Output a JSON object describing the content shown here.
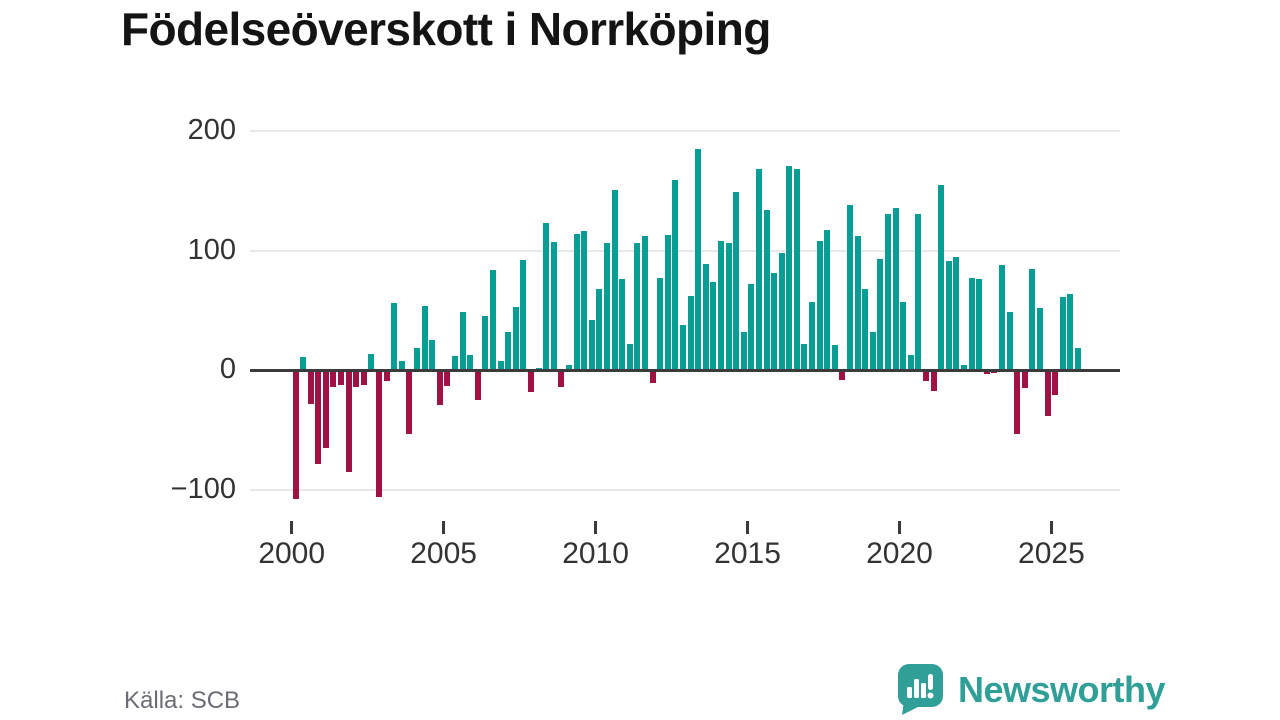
{
  "title": "Födelseöverskott i Norrköping",
  "source": "Källa: SCB",
  "branding": {
    "logo_text": "Newsworthy",
    "logo_icon": "bar-chart-speech-bubble",
    "logo_color": "#2f9f98"
  },
  "colors": {
    "positive_bar": "#089e96",
    "negative_bar": "#a01243",
    "axis_line": "#3b3b3b",
    "gridline": "#e8e8e8",
    "tick_label": "#333333"
  },
  "chart_data": {
    "type": "bar",
    "title": "Födelseöverskott i Norrköping",
    "xlabel": "",
    "ylabel": "",
    "frequency": "quarterly",
    "ylim": [
      -126,
      200
    ],
    "grid": "horizontal",
    "y_ticks": [
      {
        "label": "200",
        "value": 200
      },
      {
        "label": "100",
        "value": 100
      },
      {
        "label": "0",
        "value": 0
      },
      {
        "label": "−100",
        "value": -100
      }
    ],
    "x_ticks": [
      {
        "label": "2000",
        "quarter_index": 0
      },
      {
        "label": "2005",
        "quarter_index": 20
      },
      {
        "label": "2010",
        "quarter_index": 40
      },
      {
        "label": "2015",
        "quarter_index": 60
      },
      {
        "label": "2020",
        "quarter_index": 80
      },
      {
        "label": "2025",
        "quarter_index": 100
      }
    ],
    "series": [
      {
        "year": 2000,
        "q": [
          -108,
          11,
          -28,
          -78
        ]
      },
      {
        "year": 2001,
        "q": [
          -65,
          -14,
          -12,
          -85
        ]
      },
      {
        "year": 2002,
        "q": [
          -14,
          -12,
          14,
          -106
        ]
      },
      {
        "year": 2003,
        "q": [
          -9,
          56,
          8,
          -53
        ]
      },
      {
        "year": 2004,
        "q": [
          19,
          54,
          25,
          -29
        ]
      },
      {
        "year": 2005,
        "q": [
          -13,
          12,
          49,
          13
        ]
      },
      {
        "year": 2006,
        "q": [
          -25,
          45,
          84,
          8
        ]
      },
      {
        "year": 2007,
        "q": [
          32,
          53,
          92,
          -18
        ]
      },
      {
        "year": 2008,
        "q": [
          2,
          123,
          107,
          -14
        ]
      },
      {
        "year": 2009,
        "q": [
          4,
          114,
          116,
          42
        ]
      },
      {
        "year": 2010,
        "q": [
          68,
          106,
          151,
          76
        ]
      },
      {
        "year": 2011,
        "q": [
          22,
          106,
          112,
          -11
        ]
      },
      {
        "year": 2012,
        "q": [
          77,
          113,
          159,
          38
        ]
      },
      {
        "year": 2013,
        "q": [
          62,
          185,
          89,
          74
        ]
      },
      {
        "year": 2014,
        "q": [
          108,
          106,
          149,
          32
        ]
      },
      {
        "year": 2015,
        "q": [
          72,
          168,
          134,
          81
        ]
      },
      {
        "year": 2016,
        "q": [
          98,
          171,
          168,
          22
        ]
      },
      {
        "year": 2017,
        "q": [
          57,
          108,
          117,
          21
        ]
      },
      {
        "year": 2018,
        "q": [
          -8,
          138,
          112,
          68
        ]
      },
      {
        "year": 2019,
        "q": [
          32,
          93,
          131,
          136
        ]
      },
      {
        "year": 2020,
        "q": [
          57,
          13,
          131,
          -9
        ]
      },
      {
        "year": 2021,
        "q": [
          -17,
          155,
          91,
          95
        ]
      },
      {
        "year": 2022,
        "q": [
          4,
          77,
          76,
          -3
        ]
      },
      {
        "year": 2023,
        "q": [
          -2,
          88,
          49,
          -53
        ]
      },
      {
        "year": 2024,
        "q": [
          -15,
          85,
          52,
          -38
        ]
      },
      {
        "year": 2025,
        "q": [
          -21,
          61,
          64,
          19
        ]
      }
    ]
  }
}
